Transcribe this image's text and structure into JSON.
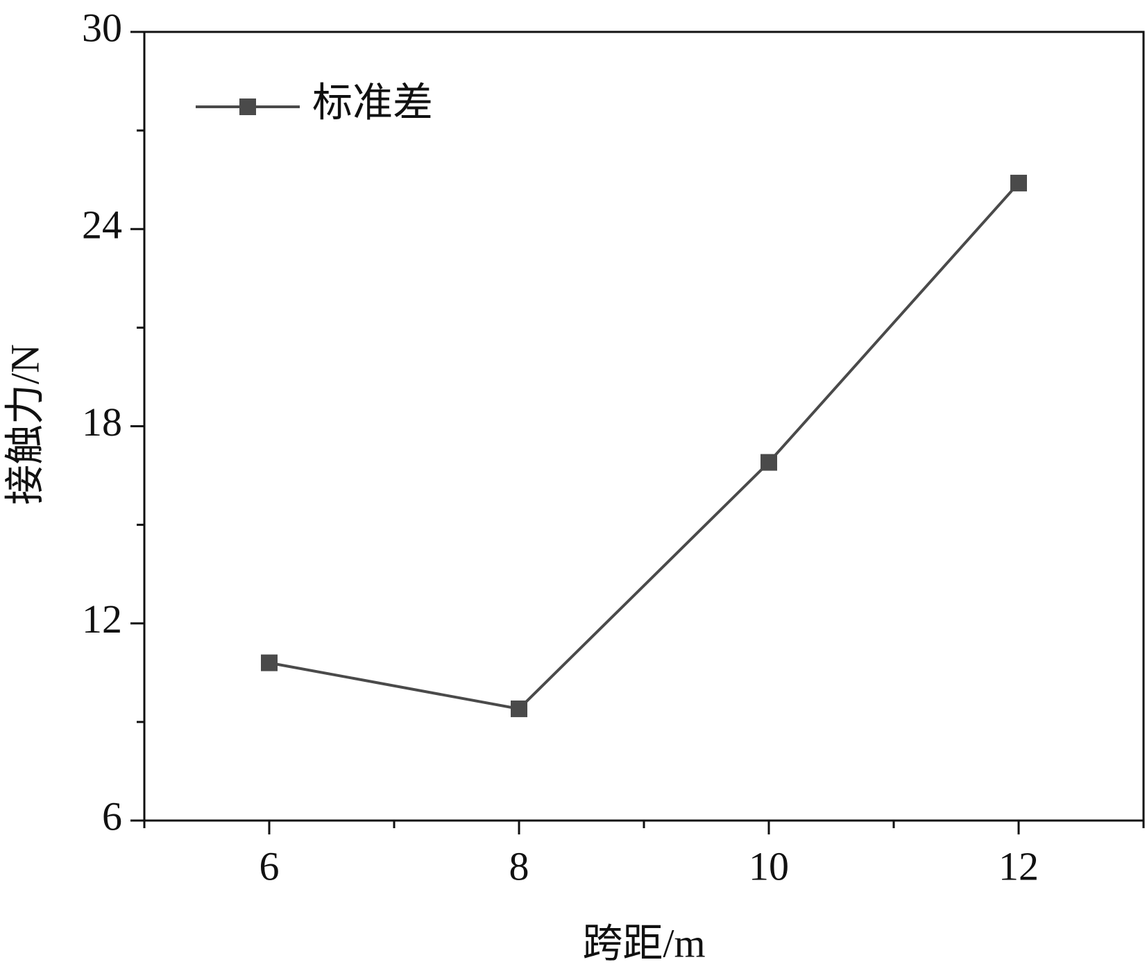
{
  "chart_data": {
    "type": "line",
    "x_label": "跨距/m",
    "y_label": "接触力/N",
    "series": [
      {
        "name": "标准差",
        "color": "#4a4a4a",
        "x": [
          6,
          8,
          10,
          12
        ],
        "values": [
          10.8,
          9.4,
          16.9,
          25.4
        ]
      }
    ],
    "xlim": [
      5,
      13
    ],
    "xticks": [
      6,
      8,
      10,
      12
    ],
    "xminorticks": [
      5,
      7,
      9,
      11,
      13
    ],
    "ylim": [
      6,
      30
    ],
    "yticks": [
      6,
      12,
      18,
      24,
      30
    ],
    "yminorticks": [
      9,
      15,
      21,
      27
    ],
    "grid": false,
    "legend": "upper left"
  }
}
